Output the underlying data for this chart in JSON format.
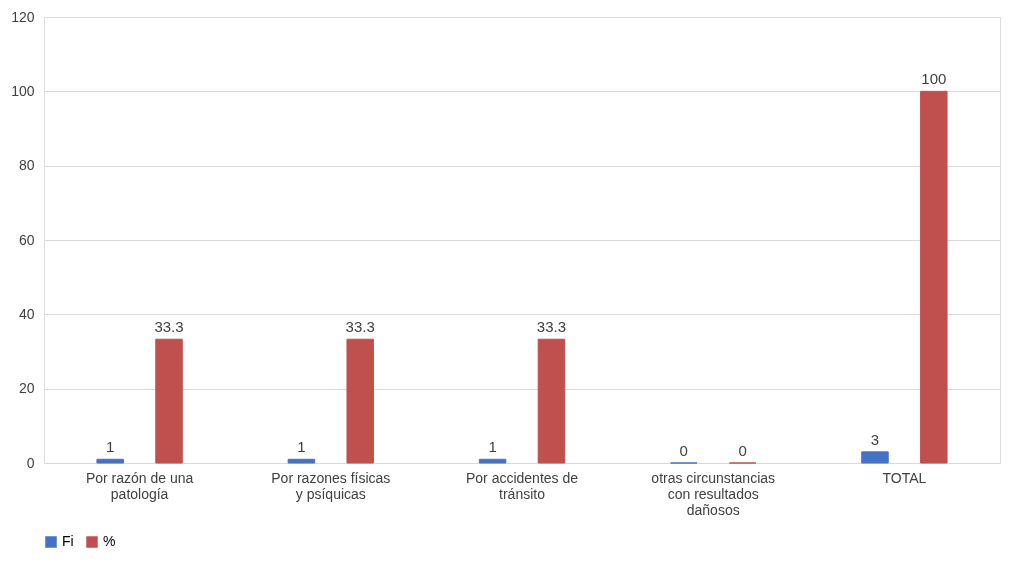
{
  "chart_data": {
    "type": "bar",
    "categories": [
      "Por razón de una patología",
      "Por razones físicas y psíquicas",
      "Por accidentes de tránsito",
      "otras circunstancias con resultados dañosos",
      "TOTAL"
    ],
    "series": [
      {
        "name": "Fi",
        "color": "#4472c4",
        "values": [
          1,
          1,
          1,
          0,
          3
        ]
      },
      {
        "name": "%",
        "color": "#c0504d",
        "values": [
          33.3,
          33.3,
          33.3,
          0,
          100
        ]
      }
    ],
    "ylim": [
      0,
      120
    ],
    "yticks": [
      0,
      20,
      40,
      60,
      80,
      100,
      120
    ],
    "grid": "y",
    "legend": "bottom",
    "data_labels": true
  }
}
